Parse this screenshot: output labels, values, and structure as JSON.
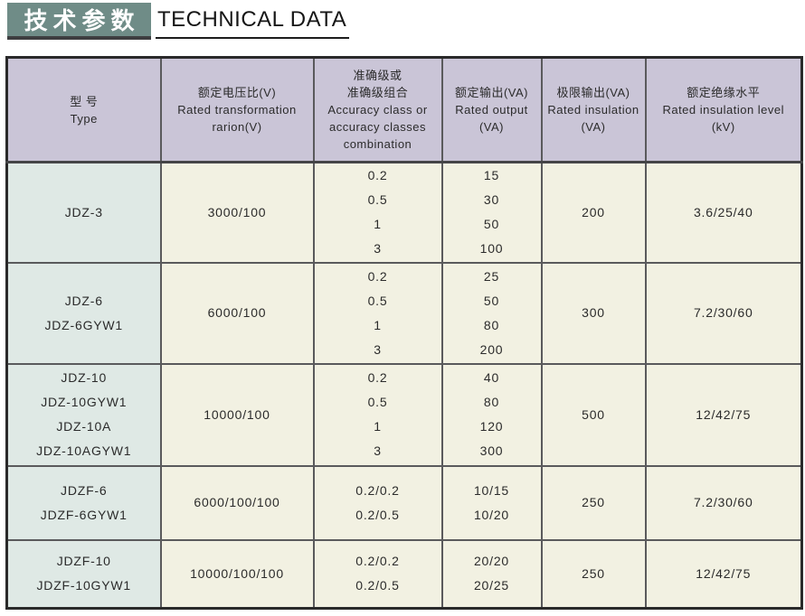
{
  "header": {
    "title_zh": "技术参数",
    "title_en": "TECHNICAL DATA"
  },
  "colors": {
    "badge_bg": "#6f8c87",
    "badge_shadow": "#3e3e40",
    "table_header_bg": "#cac5d7",
    "type_col_bg": "#dfe9e5",
    "data_cell_bg": "#f2f1e2",
    "border": "#5a5a5c",
    "outer_border": "#2a2a2a",
    "text": "#2b2b2b"
  },
  "table": {
    "columns": [
      {
        "name": "type",
        "lines": [
          "型  号",
          "Type"
        ]
      },
      {
        "name": "rated-voltage-ratio",
        "lines": [
          "额定电压比(V)",
          "Rated transformation",
          "rarion(V)"
        ]
      },
      {
        "name": "accuracy-class",
        "lines": [
          "准确级或",
          "准确级组合",
          "Accuracy class or",
          "accuracy classes",
          "combination"
        ]
      },
      {
        "name": "rated-output",
        "lines": [
          "额定输出(VA)",
          "Rated output",
          "(VA)"
        ]
      },
      {
        "name": "limit-output",
        "lines": [
          "极限输出(VA)",
          "Rated insulation",
          "(VA)"
        ]
      },
      {
        "name": "insulation-level",
        "lines": [
          "额定绝缘水平",
          "Rated insulation level",
          "(kV)"
        ]
      }
    ],
    "rows": [
      {
        "cells": [
          [
            "JDZ-3"
          ],
          [
            "3000/100"
          ],
          [
            "0.2",
            "0.5",
            "1",
            "3"
          ],
          [
            "15",
            "30",
            "50",
            "100"
          ],
          [
            "200"
          ],
          [
            "3.6/25/40"
          ]
        ]
      },
      {
        "cells": [
          [
            "JDZ-6",
            "JDZ-6GYW1"
          ],
          [
            "6000/100"
          ],
          [
            "0.2",
            "0.5",
            "1",
            "3"
          ],
          [
            "25",
            "50",
            "80",
            "200"
          ],
          [
            "300"
          ],
          [
            "7.2/30/60"
          ]
        ]
      },
      {
        "cells": [
          [
            "JDZ-10",
            "JDZ-10GYW1",
            "JDZ-10A",
            "JDZ-10AGYW1"
          ],
          [
            "10000/100"
          ],
          [
            "0.2",
            "0.5",
            "1",
            "3"
          ],
          [
            "40",
            "80",
            "120",
            "300"
          ],
          [
            "500"
          ],
          [
            "12/42/75"
          ]
        ]
      },
      {
        "cells": [
          [
            "JDZF-6",
            "JDZF-6GYW1"
          ],
          [
            "6000/100/100"
          ],
          [
            "0.2/0.2",
            "0.2/0.5"
          ],
          [
            "10/15",
            "10/20"
          ],
          [
            "250"
          ],
          [
            "7.2/30/60"
          ]
        ]
      },
      {
        "cells": [
          [
            "JDZF-10",
            "JDZF-10GYW1"
          ],
          [
            "10000/100/100"
          ],
          [
            "0.2/0.2",
            "0.2/0.5"
          ],
          [
            "20/20",
            "20/25"
          ],
          [
            "250"
          ],
          [
            "12/42/75"
          ]
        ]
      }
    ]
  }
}
